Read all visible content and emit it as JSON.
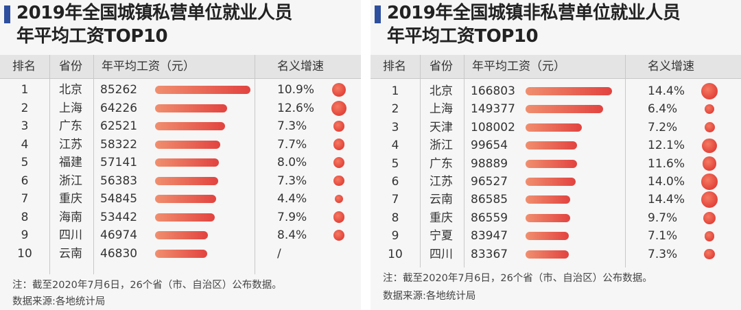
{
  "panels": [
    {
      "title_line1": "2019年全国城镇私营单位就业人员",
      "title_line2": "年平均工资TOP10",
      "headers": {
        "rank": "排名",
        "province": "省份",
        "salary": "年平均工资（元）",
        "growth": "名义增速"
      },
      "note": "注：截至2020年7月6日，26个省（市、自治区）公布数据。",
      "source": "数据来源:各地统计局",
      "chart_data": {
        "type": "bar",
        "categories": [
          "北京",
          "上海",
          "广东",
          "江苏",
          "福建",
          "浙江",
          "重庆",
          "海南",
          "四川",
          "云南"
        ],
        "ranks": [
          "1",
          "2",
          "3",
          "4",
          "5",
          "6",
          "7",
          "8",
          "9",
          "10"
        ],
        "values": [
          85262,
          64226,
          62521,
          58322,
          57141,
          56383,
          54845,
          53442,
          46974,
          46830
        ],
        "value_labels": [
          "85262",
          "64226",
          "62521",
          "58322",
          "57141",
          "56383",
          "54845",
          "53442",
          "46974",
          "46830"
        ],
        "growth": [
          10.9,
          12.6,
          7.3,
          7.7,
          8.0,
          7.3,
          4.4,
          7.9,
          8.4,
          null
        ],
        "growth_labels": [
          "10.9%",
          "12.6%",
          "7.3%",
          "7.7%",
          "8.0%",
          "7.3%",
          "4.4%",
          "7.9%",
          "8.4%",
          "/"
        ],
        "colors": {
          "bar_start": "#f08f6f",
          "bar_end": "#e2433f",
          "dot": "#e2433a"
        }
      }
    },
    {
      "title_line1": "2019年全国城镇非私营单位就业人员",
      "title_line2": "年平均工资TOP10",
      "headers": {
        "rank": "排名",
        "province": "省份",
        "salary": "年平均工资（元）",
        "growth": "名义增速"
      },
      "note": "注：截至2020年7月6日，26个省（市、自治区）公布数据。",
      "source": "数据来源:各地统计局",
      "chart_data": {
        "type": "bar",
        "categories": [
          "北京",
          "上海",
          "天津",
          "浙江",
          "广东",
          "江苏",
          "云南",
          "重庆",
          "宁夏",
          "四川"
        ],
        "ranks": [
          "1",
          "2",
          "3",
          "4",
          "5",
          "6",
          "7",
          "8",
          "9",
          "10"
        ],
        "values": [
          166803,
          149377,
          108002,
          99654,
          98889,
          96527,
          86585,
          86559,
          83947,
          83367
        ],
        "value_labels": [
          "166803",
          "149377",
          "108002",
          "99654",
          "98889",
          "96527",
          "86585",
          "86559",
          "83947",
          "83367"
        ],
        "growth": [
          14.4,
          6.4,
          7.2,
          12.1,
          11.6,
          14.0,
          14.4,
          9.7,
          7.1,
          7.3
        ],
        "growth_labels": [
          "14.4%",
          "6.4%",
          "7.2%",
          "12.1%",
          "11.6%",
          "14.0%",
          "14.4%",
          "9.7%",
          "7.1%",
          "7.3%"
        ],
        "colors": {
          "bar_start": "#f08f6f",
          "bar_end": "#e2433f",
          "dot": "#e2433a"
        }
      }
    }
  ]
}
